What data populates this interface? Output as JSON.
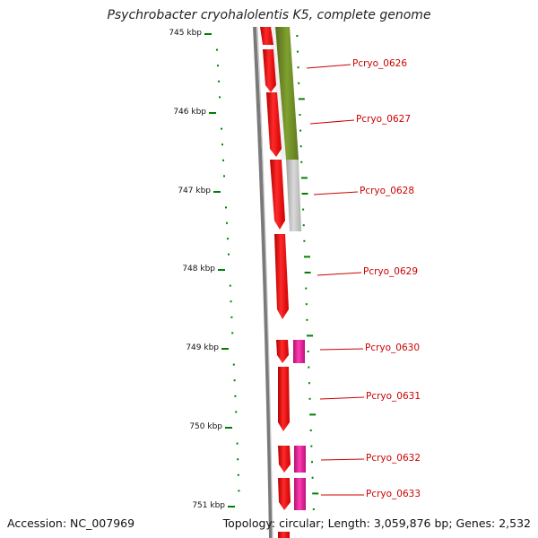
{
  "title": "Psychrobacter cryohalolentis K5, complete genome",
  "footer": {
    "accession": "Accession: NC_007969",
    "topology": "Topology: circular; Length: 3,059,876 bp; Genes: 2,532"
  },
  "ticks": [
    "745 kbp",
    "746 kbp",
    "747 kbp",
    "748 kbp",
    "749 kbp",
    "750 kbp",
    "751 kbp"
  ],
  "genes": [
    "Pcryo_0626",
    "Pcryo_0627",
    "Pcryo_0628",
    "Pcryo_0629",
    "Pcryo_0630",
    "Pcryo_0631",
    "Pcryo_0632",
    "Pcryo_0633"
  ],
  "colors": {
    "cds": "#ff0000",
    "rna": "#e8199a",
    "feature_green": "#6b8e23",
    "feature_gray": "#c0c0c0",
    "backbone": "#808080",
    "tick": "#008000",
    "label_text": "#cc0000"
  }
}
